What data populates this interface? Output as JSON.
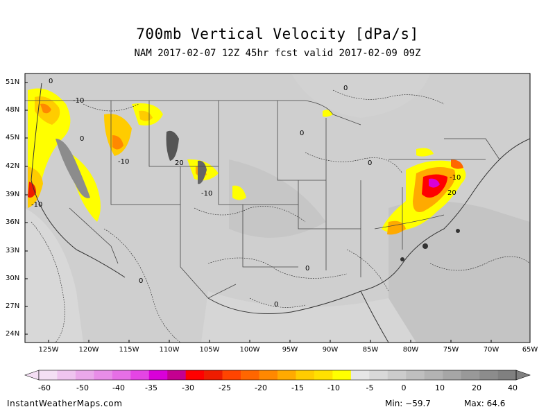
{
  "title": "700mb Vertical Velocity [dPa/s]",
  "subtitle": "NAM 2017-02-07 12Z 45hr fcst valid 2017-02-09 09Z",
  "map": {
    "background": "#cfcfcf",
    "lat_labels": [
      "51N",
      "48N",
      "45N",
      "42N",
      "39N",
      "36N",
      "33N",
      "30N",
      "27N",
      "24N"
    ],
    "lon_labels": [
      "125W",
      "120W",
      "115W",
      "110W",
      "105W",
      "100W",
      "95W",
      "90W",
      "85W",
      "80W",
      "75W",
      "70W",
      "65W"
    ],
    "contour_labels": [
      "0",
      "-10",
      "-10",
      "0",
      "-10",
      "20",
      "-10",
      "0",
      "0",
      "0",
      "-10",
      "20",
      "0",
      "0",
      "0"
    ]
  },
  "colorbar": {
    "labels": [
      "-60",
      "-50",
      "-40",
      "-35",
      "-30",
      "-25",
      "-20",
      "-15",
      "-10",
      "-5",
      "0",
      "10",
      "20",
      "40"
    ],
    "colors": [
      "#f4dff4",
      "#efc4ef",
      "#eaa8ea",
      "#e88de8",
      "#e66fe6",
      "#e445e4",
      "#d900d9",
      "#c40090",
      "#ff0000",
      "#ee1c00",
      "#ff4400",
      "#ff6600",
      "#ff8800",
      "#ffaa00",
      "#ffcc00",
      "#ffe000",
      "#ffff00",
      "#e6e6e6",
      "#d9d9d9",
      "#cccccc",
      "#bfbfbf",
      "#b3b3b3",
      "#a6a6a6",
      "#999999",
      "#8c8c8c",
      "#808080"
    ]
  },
  "footer": {
    "site": "InstantWeatherMaps.com",
    "min_label": "Min: −59.7",
    "max_label": "Max: 64.6"
  }
}
